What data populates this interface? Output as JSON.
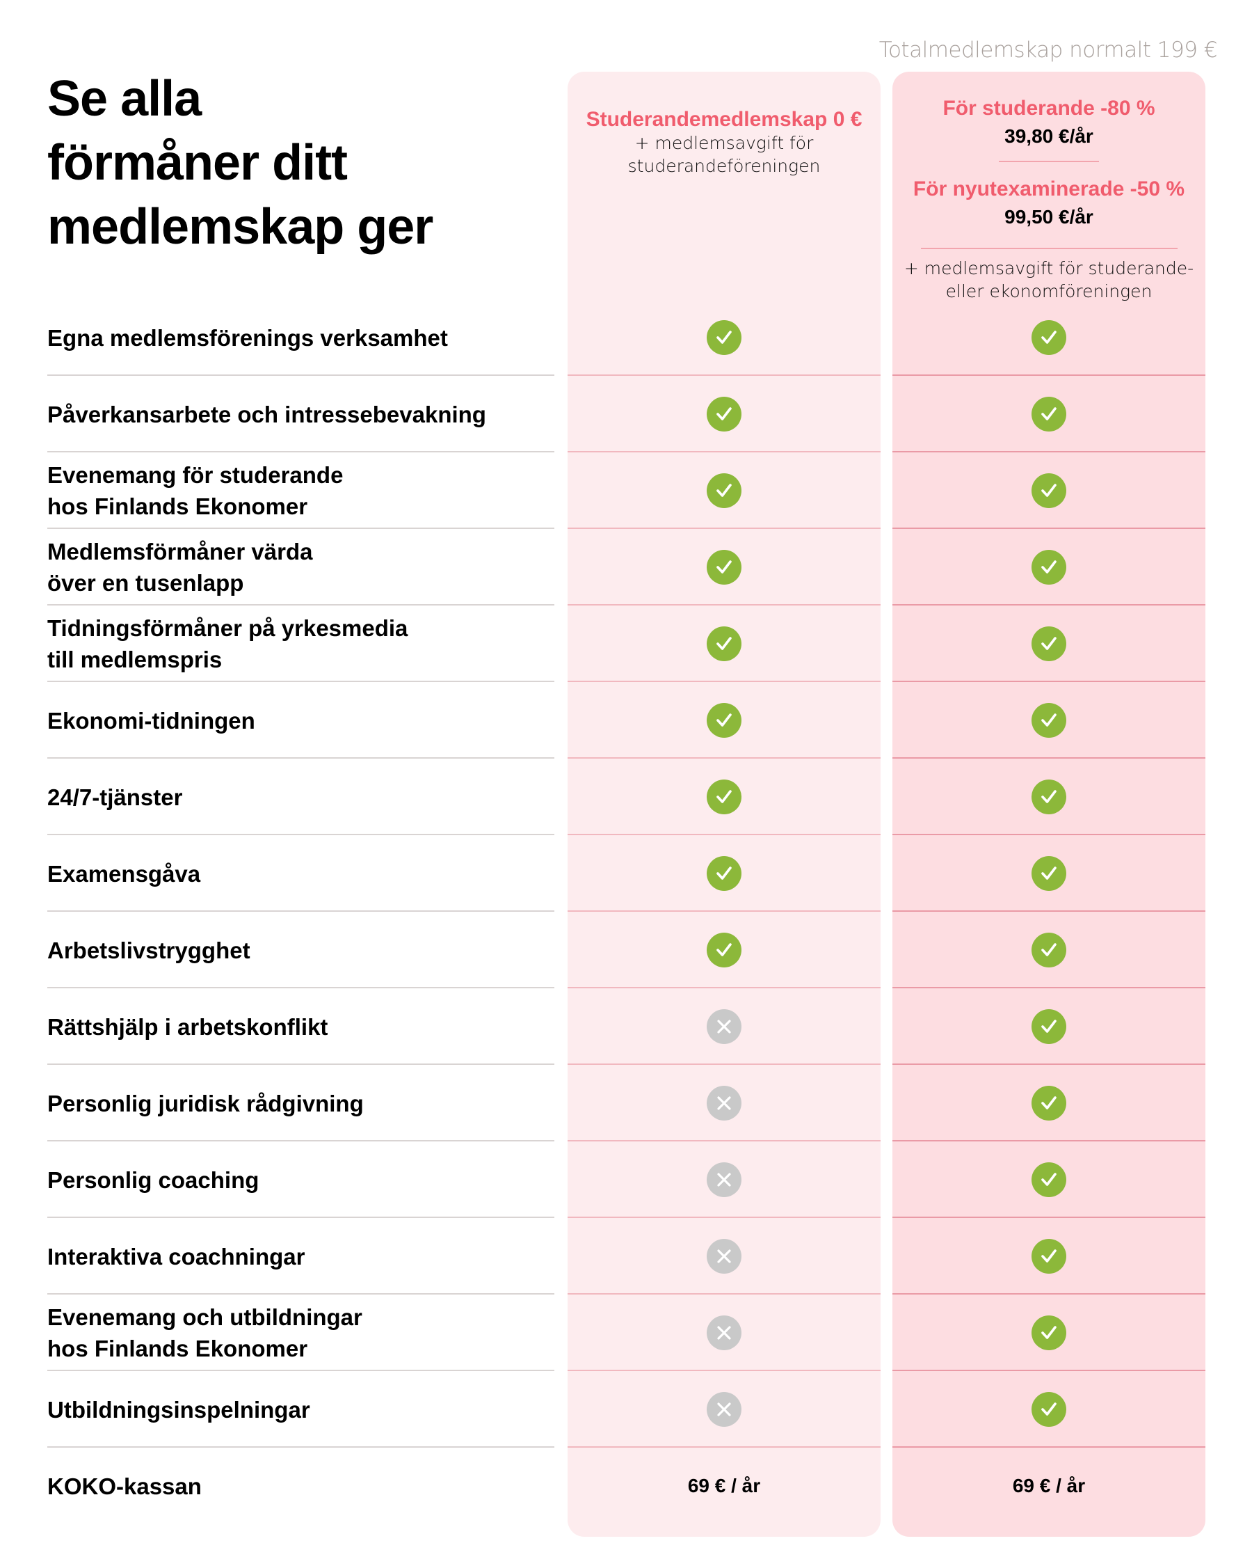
{
  "total_note": "Totalmedlemskap normalt 199 €",
  "title": [
    "Se alla",
    "förmåner ditt",
    "medlemskap ger"
  ],
  "columns": {
    "student": {
      "heading": "Studerandemedlemskap 0 €",
      "note_lines": [
        "+ medlemsavgift för",
        "studerandeföreningen"
      ]
    },
    "full": {
      "offer1_heading": "För studerande -80 %",
      "offer1_price": "39,80 €/år",
      "offer2_heading": "För nyutexaminerade -50 %",
      "offer2_price": "99,50 €/år",
      "note_lines": [
        "+ medlemsavgift för studerande-",
        "eller ekonomföreningen"
      ]
    }
  },
  "colors": {
    "accent_pink": "#f05c6d",
    "check_green": "#8cb83a",
    "cross_gray": "#c9c9c9",
    "card_student_bg": "#fdecee",
    "card_full_bg": "#fddde1"
  },
  "rows": [
    {
      "label": "Egna medlemsförenings verksamhet",
      "student": "yes",
      "full": "yes"
    },
    {
      "label": "Påverkansarbete och intressebevakning",
      "student": "yes",
      "full": "yes"
    },
    {
      "label": "Evenemang för studerande\nhos Finlands Ekonomer",
      "student": "yes",
      "full": "yes"
    },
    {
      "label": "Medlemsförmåner värda\növer en tusenlapp",
      "student": "yes",
      "full": "yes"
    },
    {
      "label": "Tidningsförmåner på yrkesmedia\ntill medlemspris",
      "student": "yes",
      "full": "yes"
    },
    {
      "label": "Ekonomi-tidningen",
      "student": "yes",
      "full": "yes"
    },
    {
      "label": "24/7-tjänster",
      "student": "yes",
      "full": "yes"
    },
    {
      "label": "Examensgåva",
      "student": "yes",
      "full": "yes"
    },
    {
      "label": "Arbetslivstrygghet",
      "student": "yes",
      "full": "yes"
    },
    {
      "label": "Rättshjälp i arbetskonflikt",
      "student": "no",
      "full": "yes"
    },
    {
      "label": "Personlig juridisk rådgivning",
      "student": "no",
      "full": "yes"
    },
    {
      "label": "Personlig coaching",
      "student": "no",
      "full": "yes"
    },
    {
      "label": "Interaktiva coachningar",
      "student": "no",
      "full": "yes"
    },
    {
      "label": "Evenemang och utbildningar\nhos Finlands Ekonomer",
      "student": "no",
      "full": "yes"
    },
    {
      "label": "Utbildningsinspelningar",
      "student": "no",
      "full": "yes"
    },
    {
      "label": "KOKO-kassan",
      "student": "69 € / år",
      "full": "69 € / år"
    }
  ]
}
